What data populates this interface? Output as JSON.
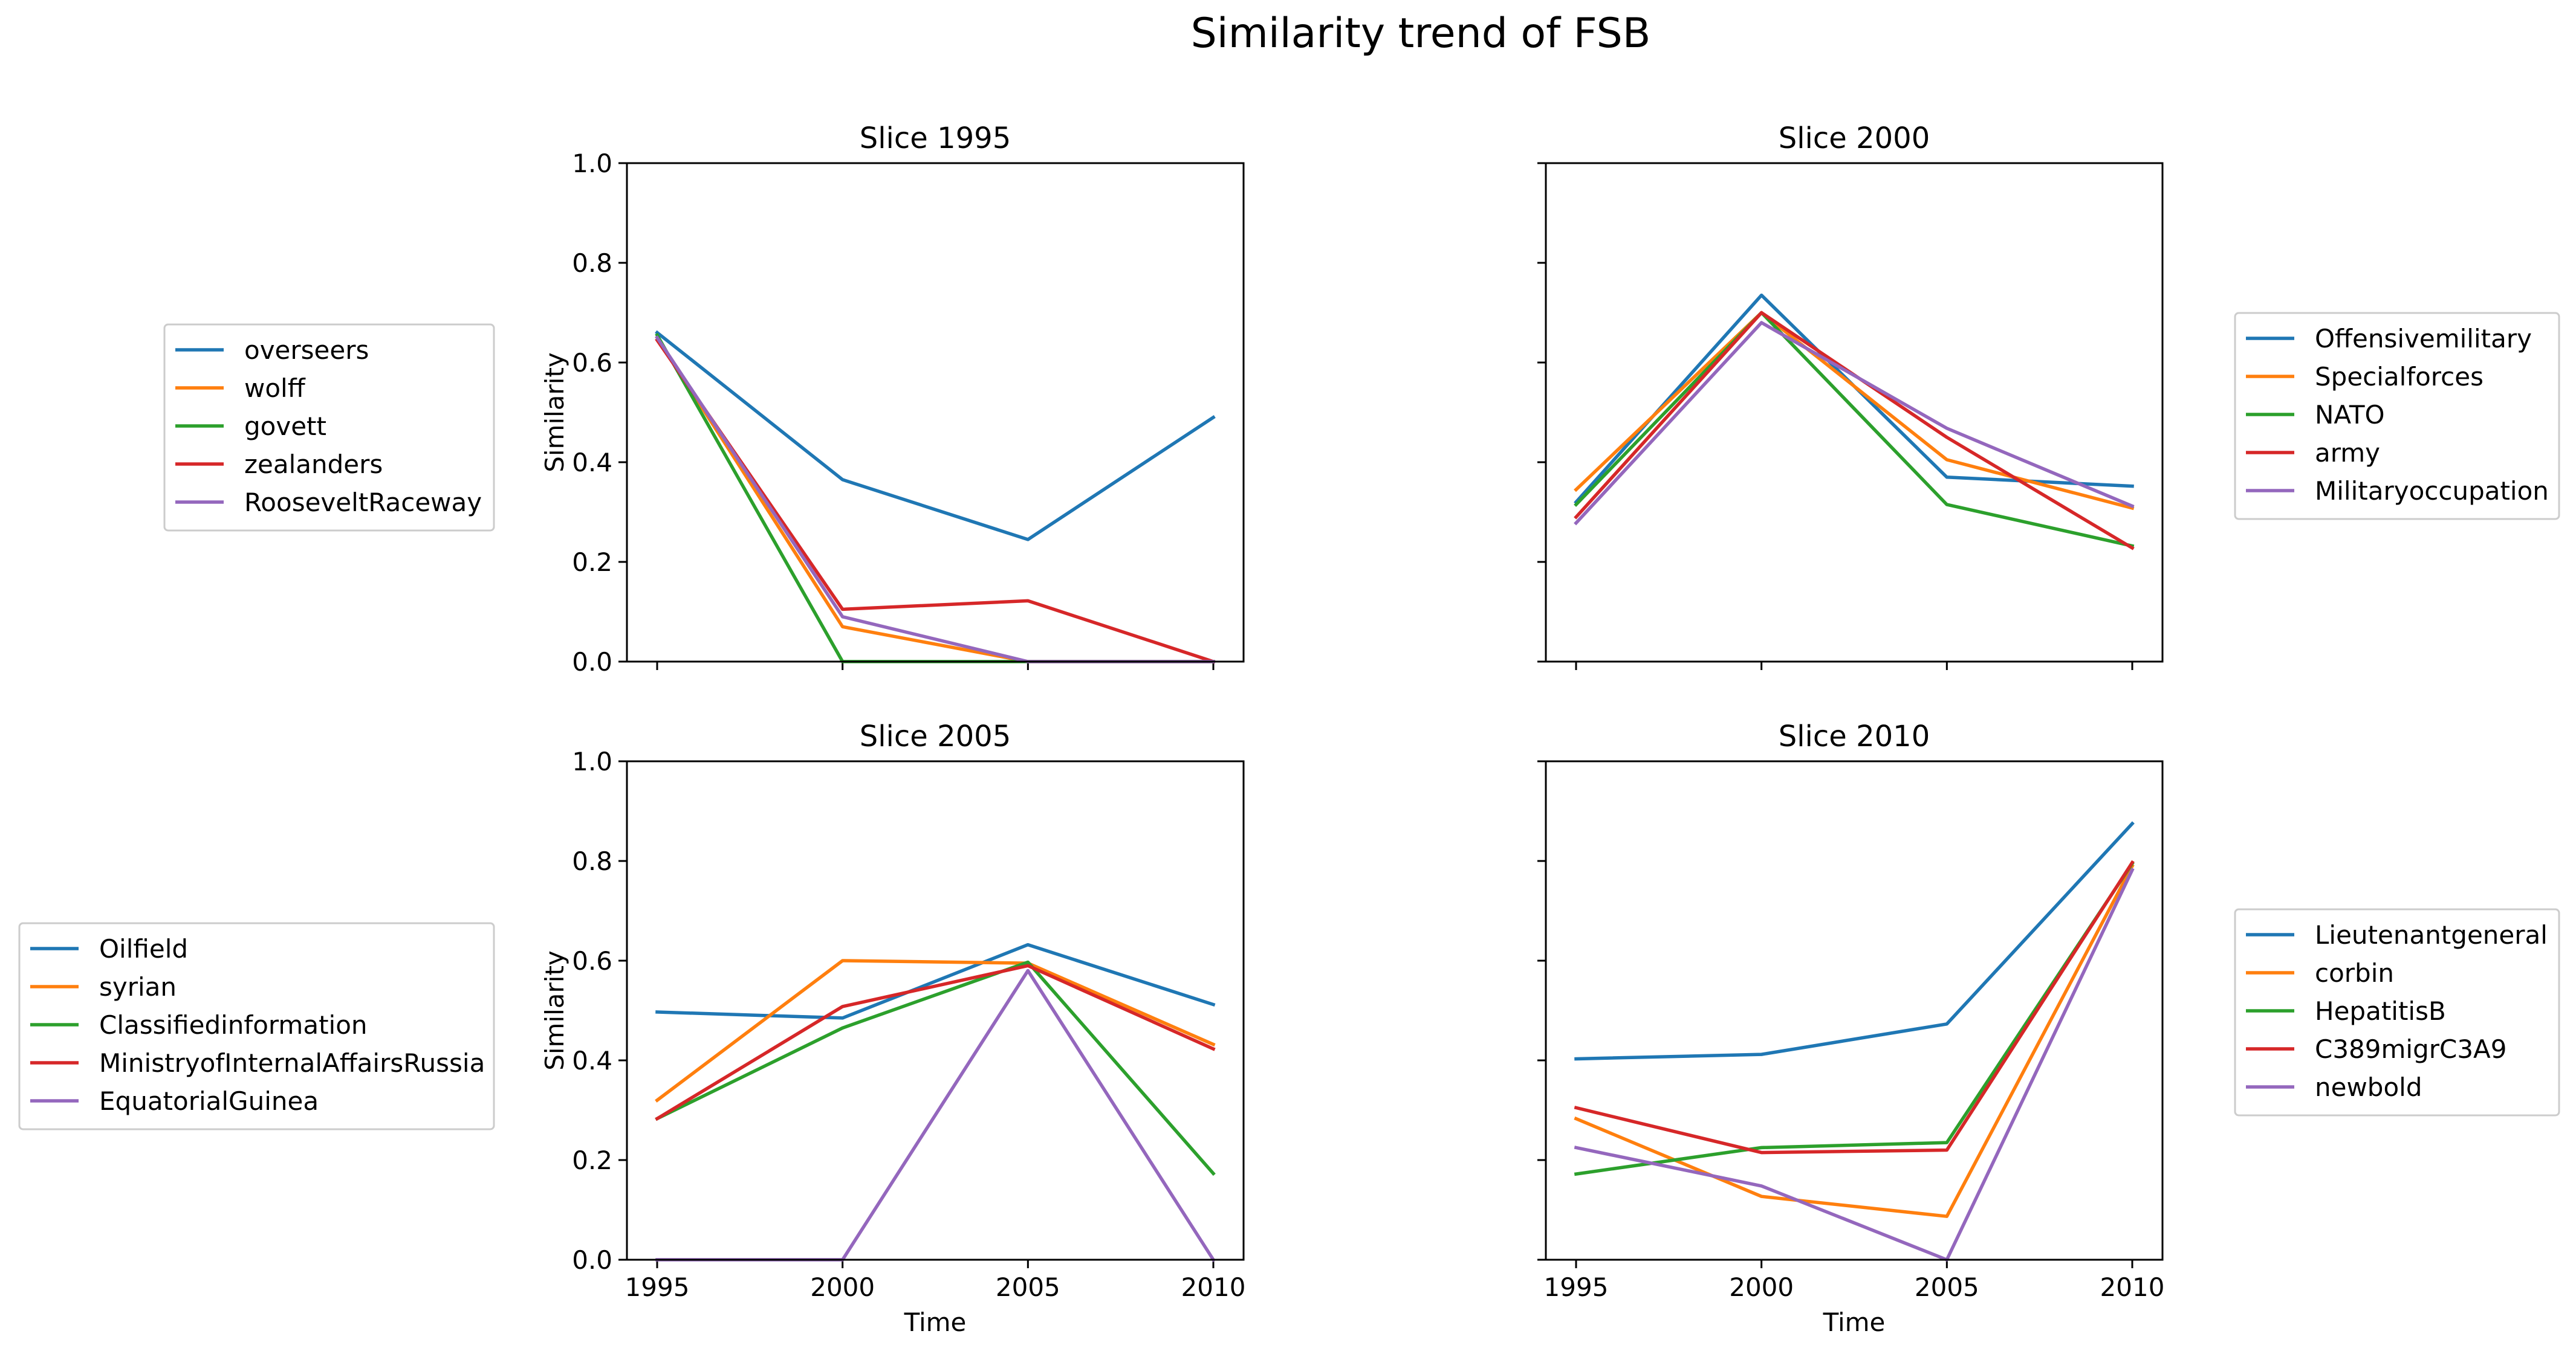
{
  "chart_data": {
    "title": "Similarity trend of FSB",
    "type": "line",
    "x": [
      1995,
      2000,
      2005,
      2010
    ],
    "x_tick_labels": [
      "1995",
      "2000",
      "2005",
      "2010"
    ],
    "xlabel": "Time",
    "ylabel": "Similarity",
    "ylim": [
      0.0,
      1.0
    ],
    "y_ticks": [
      0.0,
      0.2,
      0.4,
      0.6,
      0.8,
      1.0
    ],
    "y_tick_labels": [
      "0.0",
      "0.2",
      "0.4",
      "0.6",
      "0.8",
      "1.0"
    ],
    "colors": [
      "#1f77b4",
      "#ff7f0e",
      "#2ca02c",
      "#d62728",
      "#9467bd"
    ],
    "panels": [
      {
        "title": "Slice 1995",
        "legend_position": "left",
        "series": [
          {
            "name": "overseers",
            "values": [
              0.66,
              0.365,
              0.245,
              0.49
            ]
          },
          {
            "name": "wolff",
            "values": [
              0.65,
              0.07,
              0.0,
              0.0
            ]
          },
          {
            "name": "govett",
            "values": [
              0.655,
              0.0,
              0.0,
              0.0
            ]
          },
          {
            "name": "zealanders",
            "values": [
              0.645,
              0.105,
              0.122,
              0.0
            ]
          },
          {
            "name": "RooseveltRaceway",
            "values": [
              0.65,
              0.09,
              0.0,
              0.0
            ]
          }
        ]
      },
      {
        "title": "Slice 2000",
        "legend_position": "right",
        "series": [
          {
            "name": "Offensivemilitary",
            "values": [
              0.32,
              0.735,
              0.37,
              0.352
            ]
          },
          {
            "name": "Specialforces",
            "values": [
              0.345,
              0.7,
              0.405,
              0.308
            ]
          },
          {
            "name": "NATO",
            "values": [
              0.315,
              0.7,
              0.315,
              0.232
            ]
          },
          {
            "name": "army",
            "values": [
              0.29,
              0.7,
              0.45,
              0.228
            ]
          },
          {
            "name": "Militaryoccupation",
            "values": [
              0.278,
              0.68,
              0.468,
              0.312
            ]
          }
        ]
      },
      {
        "title": "Slice 2005",
        "legend_position": "left",
        "series": [
          {
            "name": "Oilfield",
            "values": [
              0.497,
              0.485,
              0.632,
              0.512
            ]
          },
          {
            "name": "syrian",
            "values": [
              0.32,
              0.6,
              0.595,
              0.432
            ]
          },
          {
            "name": "Classifiedinformation",
            "values": [
              0.283,
              0.465,
              0.597,
              0.173
            ]
          },
          {
            "name": "MinistryofInternalAffairsRussia",
            "values": [
              0.283,
              0.508,
              0.59,
              0.423
            ]
          },
          {
            "name": "EquatorialGuinea",
            "values": [
              0.0,
              0.0,
              0.58,
              0.0
            ]
          }
        ]
      },
      {
        "title": "Slice 2010",
        "legend_position": "right",
        "series": [
          {
            "name": "Lieutenantgeneral",
            "values": [
              0.403,
              0.412,
              0.473,
              0.875
            ]
          },
          {
            "name": "corbin",
            "values": [
              0.283,
              0.127,
              0.087,
              0.79
            ]
          },
          {
            "name": "HepatitisB",
            "values": [
              0.172,
              0.225,
              0.235,
              0.795
            ]
          },
          {
            "name": "C389migrC3A9",
            "values": [
              0.305,
              0.215,
              0.22,
              0.797
            ]
          },
          {
            "name": "newbold",
            "values": [
              0.225,
              0.148,
              0.0,
              0.782
            ]
          }
        ]
      }
    ]
  }
}
